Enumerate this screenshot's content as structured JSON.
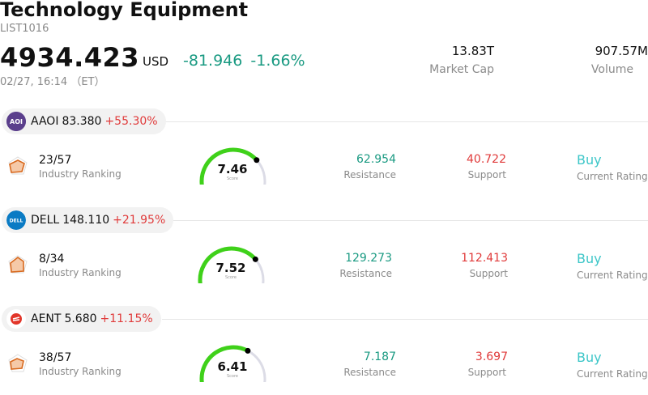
{
  "header": {
    "title": "Technology Equipment",
    "code": "LIST1016",
    "price": "4934.423",
    "currency": "USD",
    "change": "-81.946",
    "change_pct": "-1.66%",
    "timestamp": "02/27, 16:14 （ET）",
    "market_cap_value": "13.83T",
    "market_cap_label": "Market Cap",
    "volume_value": "907.57M",
    "volume_label": "Volume"
  },
  "colors": {
    "up_green": "#1a9a82",
    "down_red": "#e03a3a",
    "buy_cyan": "#3cc6c8",
    "gauge_green": "#3fd11a",
    "gauge_track": "#dcdce6"
  },
  "stocks": [
    {
      "ticker": "AAOI",
      "price": "83.380",
      "change_pct": "+55.30%",
      "logo_icon": "aaoi-logo-icon",
      "rank_value": "23/57",
      "rank_label": "Industry Ranking",
      "score": "7.46",
      "score_label": "Score",
      "score_fraction": 0.746,
      "resistance": "62.954",
      "resistance_label": "Resistance",
      "support": "40.722",
      "support_label": "Support",
      "rating": "Buy",
      "rating_label": "Current Rating"
    },
    {
      "ticker": "DELL",
      "price": "148.110",
      "change_pct": "+21.95%",
      "logo_icon": "dell-logo-icon",
      "rank_value": "8/34",
      "rank_label": "Industry Ranking",
      "score": "7.52",
      "score_label": "Score",
      "score_fraction": 0.752,
      "resistance": "129.273",
      "resistance_label": "Resistance",
      "support": "112.413",
      "support_label": "Support",
      "rating": "Buy",
      "rating_label": "Current Rating"
    },
    {
      "ticker": "AENT",
      "price": "5.680",
      "change_pct": "+11.15%",
      "logo_icon": "aent-logo-icon",
      "rank_value": "38/57",
      "rank_label": "Industry Ranking",
      "score": "6.41",
      "score_label": "Score",
      "score_fraction": 0.641,
      "resistance": "7.187",
      "resistance_label": "Resistance",
      "support": "3.697",
      "support_label": "Support",
      "rating": "Buy",
      "rating_label": "Current Rating"
    }
  ]
}
